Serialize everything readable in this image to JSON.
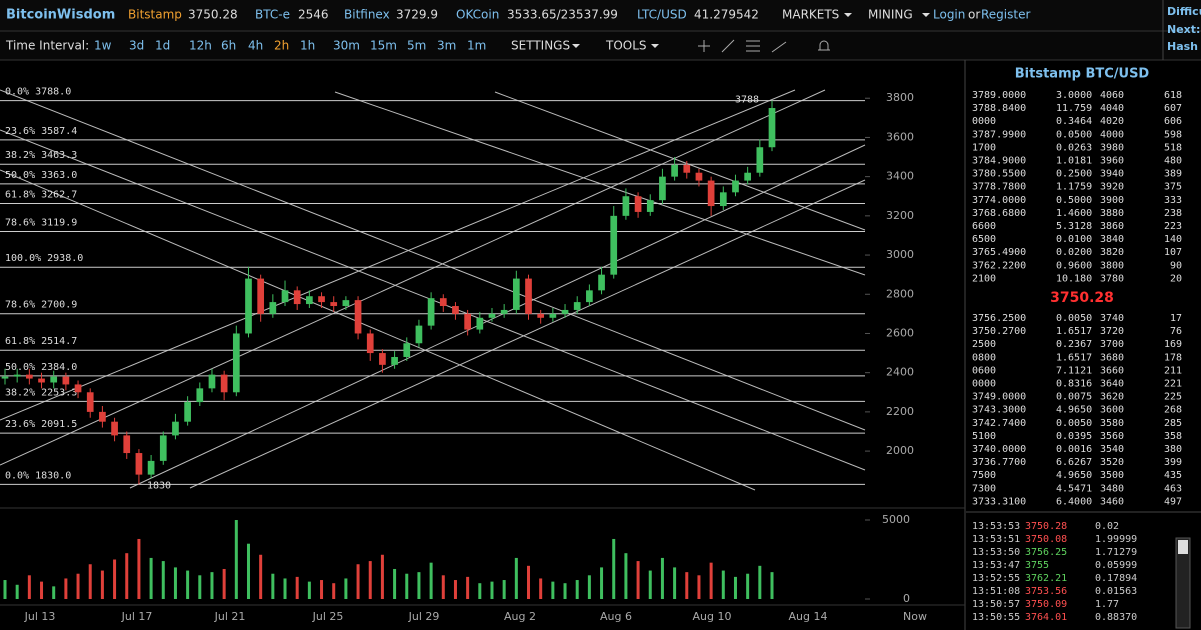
{
  "header": {
    "brand": "BitcoinWisdom",
    "tickers": [
      {
        "name": "Bitstamp",
        "price": "3750.28"
      },
      {
        "name": "BTC-e",
        "price": "2546"
      },
      {
        "name": "Bitfinex",
        "price": "3729.9"
      },
      {
        "name": "OKCoin",
        "price": "3533.65/23537.99"
      },
      {
        "name": "LTC/USD",
        "price": "41.279542"
      }
    ],
    "menus": [
      "MARKETS",
      "MINING"
    ],
    "login": "Login",
    "or": "or",
    "register": "Register",
    "side": [
      "Difficu",
      "Next:",
      "Hash R"
    ]
  },
  "toolbar": {
    "label": "Time Interval:",
    "intervals": [
      "1w",
      "3d",
      "1d",
      "12h",
      "6h",
      "4h",
      "2h",
      "1h",
      "30m",
      "15m",
      "5m",
      "3m",
      "1m"
    ],
    "settings": "SETTINGS",
    "tools": "TOOLS"
  },
  "chart_data": {
    "type": "candlestick",
    "x_labels": [
      "Jul 13",
      "Jul 17",
      "Jul 21",
      "Jul 25",
      "Jul 29",
      "Aug 2",
      "Aug 6",
      "Aug 10",
      "Aug 14",
      "Now"
    ],
    "open": [
      2370,
      2380,
      2390,
      2370,
      2350,
      2380,
      2340,
      2300,
      2200,
      2150,
      2080,
      1990,
      1880,
      1950,
      2080,
      2150,
      2250,
      2320,
      2390,
      2300,
      2600,
      2880,
      2700,
      2760,
      2820,
      2750,
      2790,
      2760,
      2740,
      2770,
      2600,
      2500,
      2440,
      2480,
      2550,
      2640,
      2780,
      2740,
      2700,
      2620,
      2680,
      2700,
      2720,
      2880,
      2700,
      2680,
      2700,
      2720,
      2760,
      2820,
      2900,
      3200,
      3300,
      3220,
      3280,
      3400,
      3460,
      3420,
      3380,
      3250,
      3320,
      3380,
      3420,
      3550
    ],
    "high": [
      2420,
      2420,
      2420,
      2400,
      2410,
      2400,
      2360,
      2320,
      2230,
      2170,
      2100,
      2010,
      1980,
      2100,
      2190,
      2280,
      2350,
      2420,
      2410,
      2640,
      2940,
      2900,
      2800,
      2870,
      2840,
      2820,
      2810,
      2790,
      2790,
      2790,
      2620,
      2520,
      2510,
      2580,
      2670,
      2810,
      2800,
      2760,
      2720,
      2710,
      2730,
      2750,
      2920,
      2900,
      2720,
      2730,
      2750,
      2790,
      2850,
      2940,
      3250,
      3340,
      3320,
      3310,
      3440,
      3500,
      3480,
      3440,
      3400,
      3350,
      3410,
      3450,
      3590,
      3788
    ],
    "low": [
      2340,
      2350,
      2340,
      2320,
      2320,
      2310,
      2270,
      2170,
      2120,
      2050,
      1960,
      1830,
      1860,
      1930,
      2060,
      2130,
      2230,
      2300,
      2260,
      2280,
      2580,
      2660,
      2680,
      2740,
      2720,
      2730,
      2730,
      2710,
      2720,
      2570,
      2460,
      2400,
      2420,
      2460,
      2530,
      2620,
      2710,
      2670,
      2590,
      2600,
      2660,
      2680,
      2700,
      2670,
      2650,
      2660,
      2680,
      2700,
      2740,
      2800,
      2880,
      3180,
      3190,
      3200,
      3260,
      3380,
      3390,
      3350,
      3200,
      3230,
      3300,
      3360,
      3400,
      3530
    ],
    "close": [
      2380,
      2390,
      2370,
      2350,
      2380,
      2340,
      2300,
      2200,
      2150,
      2080,
      1990,
      1880,
      1950,
      2080,
      2150,
      2250,
      2320,
      2390,
      2300,
      2600,
      2880,
      2700,
      2760,
      2820,
      2750,
      2790,
      2760,
      2740,
      2770,
      2600,
      2500,
      2440,
      2480,
      2550,
      2640,
      2780,
      2740,
      2700,
      2620,
      2680,
      2700,
      2720,
      2880,
      2700,
      2680,
      2700,
      2720,
      2760,
      2820,
      2900,
      3200,
      3300,
      3220,
      3280,
      3400,
      3460,
      3420,
      3380,
      3250,
      3320,
      3380,
      3420,
      3550,
      3750
    ],
    "volume": [
      1200,
      900,
      1500,
      1100,
      800,
      1300,
      1600,
      2200,
      1800,
      2500,
      2900,
      3800,
      2600,
      2400,
      2000,
      1800,
      1500,
      1700,
      1900,
      5000,
      3500,
      2800,
      1600,
      1300,
      1400,
      1100,
      1200,
      1000,
      1300,
      2200,
      2400,
      2800,
      1900,
      1600,
      1700,
      2300,
      1500,
      1200,
      1400,
      1000,
      1100,
      1200,
      2600,
      2100,
      1300,
      1100,
      1000,
      1200,
      1500,
      2000,
      3800,
      2900,
      2400,
      1800,
      2600,
      2000,
      1700,
      1500,
      2300,
      1800,
      1400,
      1600,
      2100,
      1700
    ],
    "up_color": "#3fbf5f",
    "down_color": "#e0403a",
    "ylim": [
      1725,
      3995
    ],
    "yticks": [
      2000,
      2200,
      2400,
      2600,
      2800,
      3000,
      3200,
      3400,
      3600,
      3800
    ],
    "volume_ylim": [
      0,
      5760
    ],
    "volume_yticks": [
      0,
      5000
    ],
    "fib_levels": [
      {
        "value": 3788,
        "label": "0.0% 3788.0"
      },
      {
        "value": 3587.4,
        "label": "23.6% 3587.4"
      },
      {
        "value": 3463.3,
        "label": "38.2% 3463.3"
      },
      {
        "value": 3363,
        "label": "50.0% 3363.0"
      },
      {
        "value": 3262.7,
        "label": "61.8% 3262.7"
      },
      {
        "value": 3119.9,
        "label": "78.6% 3119.9"
      },
      {
        "value": 2938,
        "label": "100.0% 2938.0"
      },
      {
        "value": 2700.9,
        "label": "78.6% 2700.9"
      },
      {
        "value": 2514.7,
        "label": "61.8% 2514.7"
      },
      {
        "value": 2384,
        "label": "50.0% 2384.0"
      },
      {
        "value": 2253.3,
        "label": "38.2% 2253.3"
      },
      {
        "value": 2091.5,
        "label": "23.6% 2091.5"
      },
      {
        "value": 1830,
        "label": "0.0% 1830.0"
      }
    ],
    "annotations": [
      {
        "value": 3788,
        "label": "3788"
      },
      {
        "value": 1830,
        "label": "1830"
      }
    ]
  },
  "order_book": {
    "title": "Bitstamp BTC/USD",
    "last": "3750.28",
    "asks": [
      [
        "3789.0000",
        "3.0000",
        "4060",
        "618"
      ],
      [
        "3788.8400",
        "11.759",
        "4040",
        "607"
      ],
      [
        "0000",
        "0.3464",
        "4020",
        "606"
      ],
      [
        "3787.9900",
        "0.0500",
        "4000",
        "598"
      ],
      [
        "1700",
        "0.0263",
        "3980",
        "518"
      ],
      [
        "3784.9000",
        "1.0181",
        "3960",
        "480"
      ],
      [
        "3780.5500",
        "0.2500",
        "3940",
        "389"
      ],
      [
        "3778.7800",
        "1.1759",
        "3920",
        "375"
      ],
      [
        "3774.0000",
        "0.5000",
        "3900",
        "333"
      ],
      [
        "3768.6800",
        "1.4600",
        "3880",
        "238"
      ],
      [
        "6600",
        "5.3128",
        "3860",
        "223"
      ],
      [
        "6500",
        "0.0100",
        "3840",
        "140"
      ],
      [
        "3765.4900",
        "0.0200",
        "3820",
        "107"
      ],
      [
        "3762.2200",
        "0.9600",
        "3800",
        "90"
      ],
      [
        "2100",
        "10.180",
        "3780",
        "20"
      ]
    ],
    "bids": [
      [
        "3756.2500",
        "0.0050",
        "3740",
        "17"
      ],
      [
        "3750.2700",
        "1.6517",
        "3720",
        "76"
      ],
      [
        "2500",
        "0.2367",
        "3700",
        "169"
      ],
      [
        "0800",
        "1.6517",
        "3680",
        "178"
      ],
      [
        "0600",
        "7.1121",
        "3660",
        "211"
      ],
      [
        "0000",
        "0.8316",
        "3640",
        "221"
      ],
      [
        "3749.0000",
        "0.0075",
        "3620",
        "225"
      ],
      [
        "3743.3000",
        "4.9650",
        "3600",
        "268"
      ],
      [
        "3742.7400",
        "0.0050",
        "3580",
        "285"
      ],
      [
        "5100",
        "0.0395",
        "3560",
        "358"
      ],
      [
        "3740.0000",
        "0.0016",
        "3540",
        "380"
      ],
      [
        "3736.7700",
        "6.6267",
        "3520",
        "399"
      ],
      [
        "7500",
        "4.9650",
        "3500",
        "435"
      ],
      [
        "7300",
        "4.5471",
        "3480",
        "463"
      ],
      [
        "3733.3100",
        "6.4000",
        "3460",
        "497"
      ]
    ]
  },
  "trades": [
    {
      "time": "13:53:53",
      "price": "3750.28",
      "amount": "0.02",
      "side": "sell"
    },
    {
      "time": "13:53:51",
      "price": "3750.08",
      "amount": "1.99999",
      "side": "sell"
    },
    {
      "time": "13:53:50",
      "price": "3756.25",
      "amount": "1.71279",
      "side": "buy"
    },
    {
      "time": "13:53:47",
      "price": "3755",
      "amount": "0.05999",
      "side": "buy"
    },
    {
      "time": "13:52:55",
      "price": "3762.21",
      "amount": "0.17894",
      "side": "buy"
    },
    {
      "time": "13:51:08",
      "price": "3753.56",
      "amount": "0.01563",
      "side": "sell"
    },
    {
      "time": "13:50:57",
      "price": "3750.09",
      "amount": "1.77",
      "side": "sell"
    },
    {
      "time": "13:50:55",
      "price": "3764.01",
      "amount": "0.88370",
      "side": "sell"
    }
  ]
}
